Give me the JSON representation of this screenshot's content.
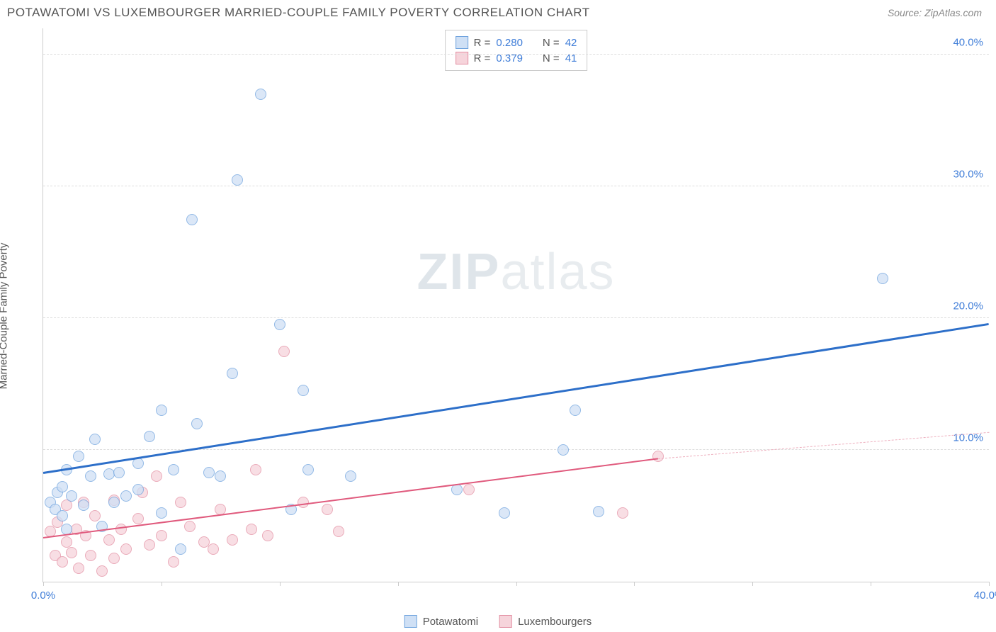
{
  "header": {
    "title": "POTAWATOMI VS LUXEMBOURGER MARRIED-COUPLE FAMILY POVERTY CORRELATION CHART",
    "source_prefix": "Source: ",
    "source_name": "ZipAtlas.com"
  },
  "watermark": {
    "left": "ZIP",
    "right": "atlas"
  },
  "axes": {
    "ylabel": "Married-Couple Family Poverty",
    "xmin": 0,
    "xmax": 40,
    "ymin": 0,
    "ymax": 42,
    "yticks": [
      {
        "v": 10,
        "label": "10.0%"
      },
      {
        "v": 20,
        "label": "20.0%"
      },
      {
        "v": 30,
        "label": "30.0%"
      },
      {
        "v": 40,
        "label": "40.0%"
      }
    ],
    "xtick_positions": [
      0,
      5,
      10,
      15,
      20,
      25,
      30,
      35,
      40
    ],
    "xtick_labels": [
      {
        "v": 0,
        "label": "0.0%",
        "color": "#3f7dd8"
      },
      {
        "v": 40,
        "label": "40.0%",
        "color": "#3f7dd8"
      }
    ],
    "ytick_color": "#3f7dd8",
    "grid_color": "#dddddd"
  },
  "stats": {
    "rows": [
      {
        "r_label": "R =",
        "r": "0.280",
        "n_label": "N =",
        "n": "42",
        "swatch_fill": "#cfe0f5",
        "swatch_border": "#6fa3de"
      },
      {
        "r_label": "R =",
        "r": "0.379",
        "n_label": "N =",
        "n": "41",
        "swatch_fill": "#f6d4db",
        "swatch_border": "#e38fa3"
      }
    ]
  },
  "legend": {
    "items": [
      {
        "label": "Potawatomi",
        "fill": "#cfe0f5",
        "border": "#6fa3de"
      },
      {
        "label": "Luxembourgers",
        "fill": "#f6d4db",
        "border": "#e38fa3"
      }
    ]
  },
  "series": {
    "potawatomi": {
      "fill": "#cfe0f5",
      "border": "#6fa3de",
      "points": [
        [
          0.3,
          6.0
        ],
        [
          0.5,
          5.5
        ],
        [
          0.6,
          6.8
        ],
        [
          0.8,
          5.0
        ],
        [
          0.8,
          7.2
        ],
        [
          1.0,
          4.0
        ],
        [
          1.0,
          8.5
        ],
        [
          1.2,
          6.5
        ],
        [
          1.5,
          9.5
        ],
        [
          1.7,
          5.8
        ],
        [
          2.0,
          8.0
        ],
        [
          2.2,
          10.8
        ],
        [
          2.5,
          4.2
        ],
        [
          2.8,
          8.2
        ],
        [
          3.0,
          6.0
        ],
        [
          3.2,
          8.3
        ],
        [
          3.5,
          6.5
        ],
        [
          4.0,
          7.0
        ],
        [
          4.0,
          9.0
        ],
        [
          4.5,
          11.0
        ],
        [
          5.0,
          5.2
        ],
        [
          5.0,
          13.0
        ],
        [
          5.5,
          8.5
        ],
        [
          5.8,
          2.5
        ],
        [
          6.3,
          27.5
        ],
        [
          6.5,
          12.0
        ],
        [
          7.0,
          8.3
        ],
        [
          7.5,
          8.0
        ],
        [
          8.0,
          15.8
        ],
        [
          8.2,
          30.5
        ],
        [
          9.2,
          37.0
        ],
        [
          10.0,
          19.5
        ],
        [
          10.5,
          5.5
        ],
        [
          11.0,
          14.5
        ],
        [
          11.2,
          8.5
        ],
        [
          13.0,
          8.0
        ],
        [
          17.5,
          7.0
        ],
        [
          19.5,
          5.2
        ],
        [
          22.0,
          10.0
        ],
        [
          22.5,
          13.0
        ],
        [
          23.5,
          5.3
        ],
        [
          35.5,
          23.0
        ]
      ],
      "trend": {
        "x1": 0,
        "y1": 8.2,
        "x2": 40,
        "y2": 19.5,
        "color": "#2d6fc9",
        "width": 2.5
      }
    },
    "luxembourgers": {
      "fill": "#f6d4db",
      "border": "#e38fa3",
      "points": [
        [
          0.3,
          3.8
        ],
        [
          0.5,
          2.0
        ],
        [
          0.6,
          4.5
        ],
        [
          0.8,
          1.5
        ],
        [
          1.0,
          3.0
        ],
        [
          1.0,
          5.8
        ],
        [
          1.2,
          2.2
        ],
        [
          1.4,
          4.0
        ],
        [
          1.5,
          1.0
        ],
        [
          1.7,
          6.0
        ],
        [
          1.8,
          3.5
        ],
        [
          2.0,
          2.0
        ],
        [
          2.2,
          5.0
        ],
        [
          2.5,
          0.8
        ],
        [
          2.8,
          3.2
        ],
        [
          3.0,
          6.2
        ],
        [
          3.0,
          1.8
        ],
        [
          3.3,
          4.0
        ],
        [
          3.5,
          2.5
        ],
        [
          4.0,
          4.8
        ],
        [
          4.2,
          6.8
        ],
        [
          4.5,
          2.8
        ],
        [
          4.8,
          8.0
        ],
        [
          5.0,
          3.5
        ],
        [
          5.5,
          1.5
        ],
        [
          5.8,
          6.0
        ],
        [
          6.2,
          4.2
        ],
        [
          6.8,
          3.0
        ],
        [
          7.2,
          2.5
        ],
        [
          7.5,
          5.5
        ],
        [
          8.0,
          3.2
        ],
        [
          8.8,
          4.0
        ],
        [
          9.0,
          8.5
        ],
        [
          9.5,
          3.5
        ],
        [
          10.2,
          17.5
        ],
        [
          11.0,
          6.0
        ],
        [
          12.0,
          5.5
        ],
        [
          12.5,
          3.8
        ],
        [
          18.0,
          7.0
        ],
        [
          24.5,
          5.2
        ],
        [
          26.0,
          9.5
        ]
      ],
      "trend_solid": {
        "x1": 0,
        "y1": 3.3,
        "x2": 26,
        "y2": 9.3,
        "color": "#e05a7d",
        "width": 2
      },
      "trend_dash": {
        "x1": 26,
        "y1": 9.3,
        "x2": 40,
        "y2": 11.3,
        "color": "#eeb0bf"
      }
    }
  }
}
